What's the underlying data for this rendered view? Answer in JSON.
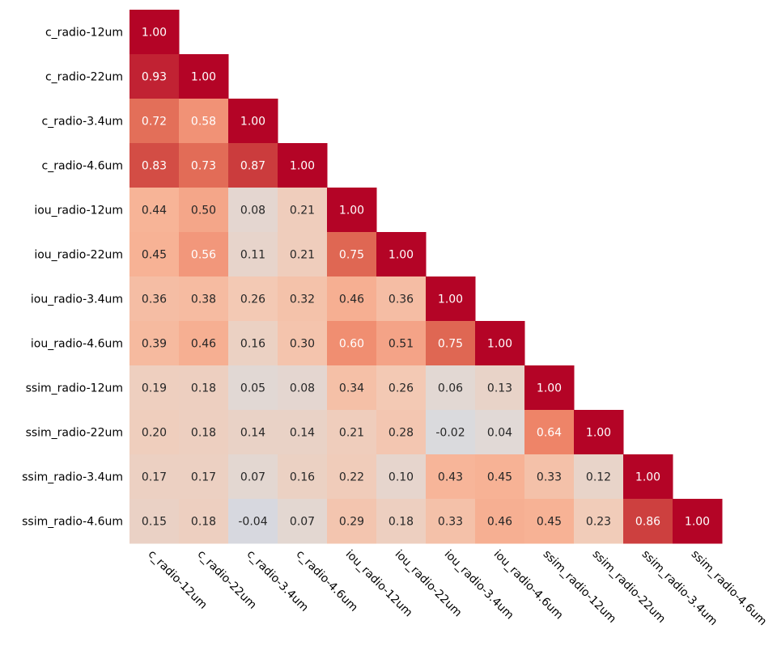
{
  "chart_data": {
    "type": "heatmap",
    "title": "",
    "xlabel": "",
    "ylabel": "",
    "shape": "lower-triangle",
    "colormap": "coolwarm",
    "vmin": -1,
    "vmax": 1,
    "colors": {
      "low": "#3b4cc0",
      "mid": "#dddddd",
      "high": "#b40426",
      "text_dark": "#262626",
      "text_light": "#ffffff"
    },
    "labels": [
      "c_radio-12um",
      "c_radio-22um",
      "c_radio-3.4um",
      "c_radio-4.6um",
      "iou_radio-12um",
      "iou_radio-22um",
      "iou_radio-3.4um",
      "iou_radio-4.6um",
      "ssim_radio-12um",
      "ssim_radio-22um",
      "ssim_radio-3.4um",
      "ssim_radio-4.6um"
    ],
    "matrix": [
      [
        1.0
      ],
      [
        0.93,
        1.0
      ],
      [
        0.72,
        0.58,
        1.0
      ],
      [
        0.83,
        0.73,
        0.87,
        1.0
      ],
      [
        0.44,
        0.5,
        0.08,
        0.21,
        1.0
      ],
      [
        0.45,
        0.56,
        0.11,
        0.21,
        0.75,
        1.0
      ],
      [
        0.36,
        0.38,
        0.26,
        0.32,
        0.46,
        0.36,
        1.0
      ],
      [
        0.39,
        0.46,
        0.16,
        0.3,
        0.6,
        0.51,
        0.75,
        1.0
      ],
      [
        0.19,
        0.18,
        0.05,
        0.08,
        0.34,
        0.26,
        0.06,
        0.13,
        1.0
      ],
      [
        0.2,
        0.18,
        0.14,
        0.14,
        0.21,
        0.28,
        -0.02,
        0.04,
        0.64,
        1.0
      ],
      [
        0.17,
        0.17,
        0.07,
        0.16,
        0.22,
        0.1,
        0.43,
        0.45,
        0.33,
        0.12,
        1.0
      ],
      [
        0.15,
        0.18,
        -0.04,
        0.07,
        0.29,
        0.18,
        0.33,
        0.46,
        0.45,
        0.23,
        0.86,
        1.0
      ]
    ]
  }
}
